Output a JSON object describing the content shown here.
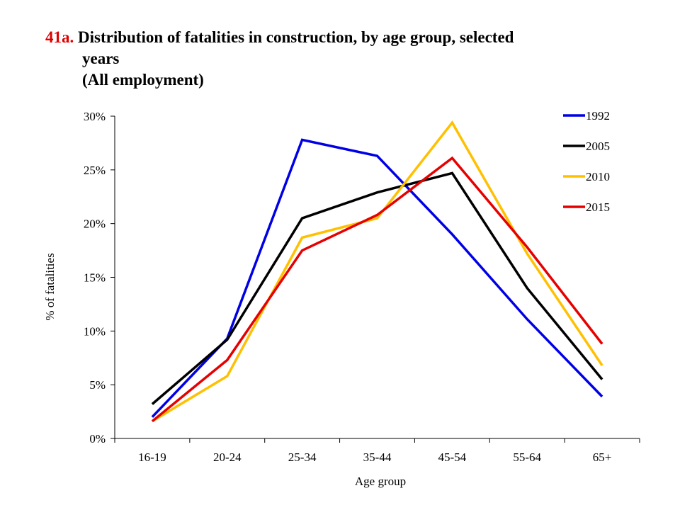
{
  "title": {
    "number": "41a.",
    "line1": "Distribution of fatalities in construction, by age group, selected",
    "line2": "years",
    "line3": "(All employment)"
  },
  "chart_data": {
    "type": "line",
    "categories": [
      "16-19",
      "20-24",
      "25-34",
      "35-44",
      "45-54",
      "55-64",
      "65+"
    ],
    "series": [
      {
        "name": "1992",
        "color": "#0000e6",
        "values": [
          2.0,
          9.3,
          27.8,
          26.3,
          19.0,
          11.1,
          3.9
        ]
      },
      {
        "name": "2005",
        "color": "#000000",
        "values": [
          3.2,
          9.2,
          20.5,
          22.9,
          24.7,
          14.0,
          5.5
        ]
      },
      {
        "name": "2010",
        "color": "#ffc000",
        "values": [
          1.6,
          5.8,
          18.7,
          20.5,
          29.4,
          17.2,
          6.8
        ]
      },
      {
        "name": "2015",
        "color": "#e60000",
        "values": [
          1.6,
          7.3,
          17.5,
          20.8,
          26.1,
          17.8,
          8.8
        ]
      }
    ],
    "xlabel": "Age group",
    "ylabel": "% of fatalities",
    "ylim": [
      0,
      30
    ],
    "yticks": [
      0,
      5,
      10,
      15,
      20,
      25,
      30
    ],
    "ytick_labels": [
      "0%",
      "5%",
      "10%",
      "15%",
      "20%",
      "25%",
      "30%"
    ],
    "grid": false,
    "legend_position": "top-right"
  }
}
